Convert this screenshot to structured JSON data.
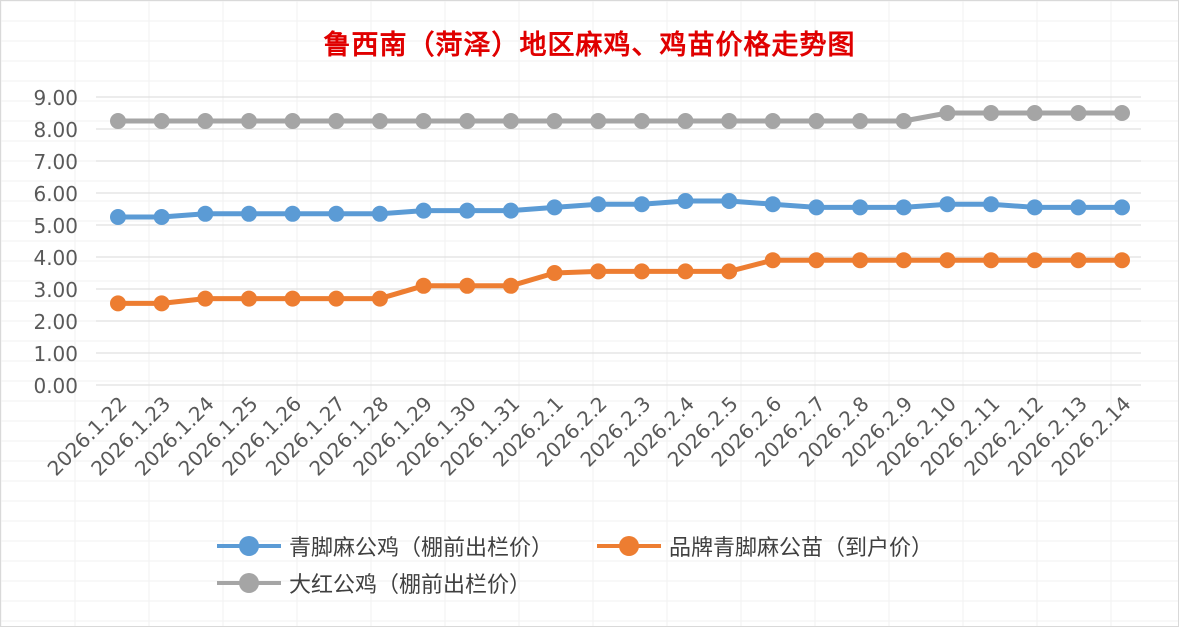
{
  "chart_data": {
    "type": "line",
    "title": "鲁西南（菏泽）地区麻鸡、鸡苗价格走势图",
    "xlabel": "",
    "ylabel": "",
    "ylim": [
      0,
      9
    ],
    "yticks": [
      "0.00",
      "1.00",
      "2.00",
      "3.00",
      "4.00",
      "5.00",
      "6.00",
      "7.00",
      "8.00",
      "9.00"
    ],
    "categories": [
      "2026.1.22",
      "2026.1.23",
      "2026.1.24",
      "2026.1.25",
      "2026.1.26",
      "2026.1.27",
      "2026.1.28",
      "2026.1.29",
      "2026.1.30",
      "2026.1.31",
      "2026.2.1",
      "2026.2.2",
      "2026.2.3",
      "2026.2.4",
      "2026.2.5",
      "2026.2.6",
      "2026.2.7",
      "2026.2.8",
      "2026.2.9",
      "2026.2.10",
      "2026.2.11",
      "2026.2.12",
      "2026.2.13",
      "2026.2.14"
    ],
    "grid": true,
    "legend_position": "bottom",
    "series": [
      {
        "name": "青脚麻公鸡（棚前出栏价）",
        "color": "#5b9bd5",
        "values": [
          5.25,
          5.25,
          5.35,
          5.35,
          5.35,
          5.35,
          5.35,
          5.45,
          5.45,
          5.45,
          5.55,
          5.65,
          5.65,
          5.75,
          5.75,
          5.65,
          5.55,
          5.55,
          5.55,
          5.65,
          5.65,
          5.55,
          5.55,
          5.55
        ]
      },
      {
        "name": "品牌青脚麻公苗（到户价）",
        "color": "#ed7d31",
        "values": [
          2.55,
          2.55,
          2.7,
          2.7,
          2.7,
          2.7,
          2.7,
          3.1,
          3.1,
          3.1,
          3.5,
          3.55,
          3.55,
          3.55,
          3.55,
          3.9,
          3.9,
          3.9,
          3.9,
          3.9,
          3.9,
          3.9,
          3.9,
          3.9
        ]
      },
      {
        "name": "大红公鸡（棚前出栏价）",
        "color": "#a5a5a5",
        "values": [
          8.25,
          8.25,
          8.25,
          8.25,
          8.25,
          8.25,
          8.25,
          8.25,
          8.25,
          8.25,
          8.25,
          8.25,
          8.25,
          8.25,
          8.25,
          8.25,
          8.25,
          8.25,
          8.25,
          8.5,
          8.5,
          8.5,
          8.5,
          8.5
        ]
      }
    ]
  }
}
